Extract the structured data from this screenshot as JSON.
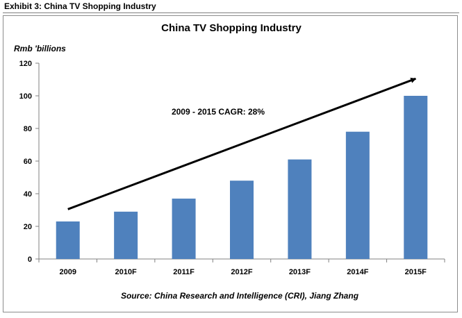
{
  "exhibit_label": "Exhibit 3: China TV Shopping Industry",
  "chart_data": {
    "type": "bar",
    "title": "China TV Shopping Industry",
    "ylabel": "Rmb 'billions",
    "xlabel": "",
    "categories": [
      "2009",
      "2010F",
      "2011F",
      "2012F",
      "2013F",
      "2014F",
      "2015F"
    ],
    "values": [
      23,
      29,
      37,
      48,
      61,
      78,
      100
    ],
    "ylim": [
      0,
      120
    ],
    "yticks": [
      0,
      20,
      40,
      60,
      80,
      100,
      120
    ],
    "bar_color": "#4f81bd",
    "grid": false,
    "legend": "none",
    "annotations": [
      {
        "text": "2009 - 2015 CAGR: 28%",
        "type": "trend-arrow",
        "from_category": "2009",
        "to_category": "2015F"
      }
    ],
    "source": "Source: China Research and Intelligence (CRI), Jiang Zhang"
  }
}
